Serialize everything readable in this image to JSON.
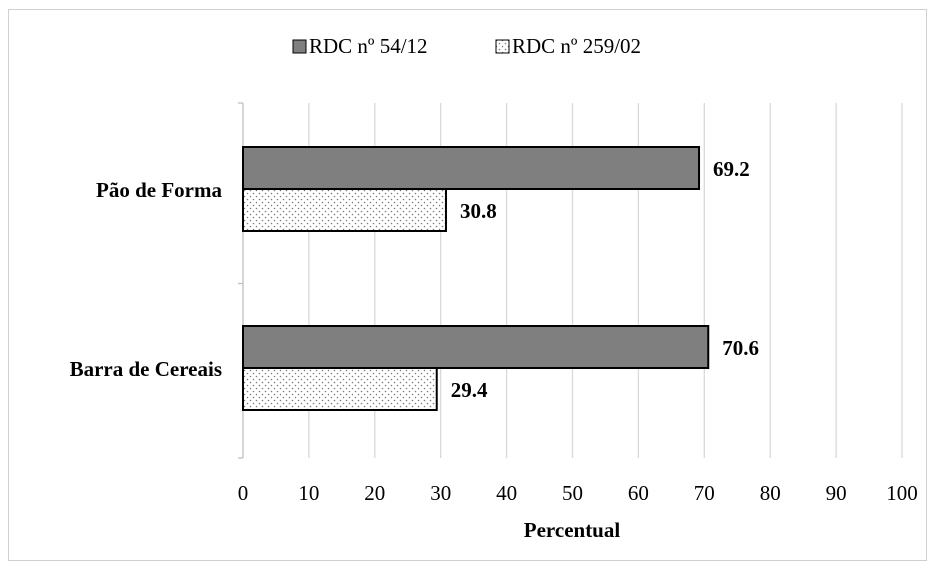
{
  "chart_data": {
    "type": "bar",
    "orientation": "horizontal",
    "categories": [
      "Pão de Forma",
      "Barra de Cereais"
    ],
    "series": [
      {
        "name": "RDC nº 54/12",
        "values": [
          69.2,
          70.6
        ],
        "color": "#7f7f7f",
        "pattern": "solid"
      },
      {
        "name": "RDC nº 259/02",
        "values": [
          30.8,
          29.4
        ],
        "color": "#ffffff",
        "pattern": "dotted"
      }
    ],
    "data_labels": [
      [
        "69.2",
        "70.6"
      ],
      [
        "30.8",
        "29.4"
      ]
    ],
    "xlabel": "Percentual",
    "ylabel": "",
    "title": "",
    "xlim": [
      0,
      100
    ],
    "xticks": [
      "0",
      "10",
      "20",
      "30",
      "40",
      "50",
      "60",
      "70",
      "80",
      "90",
      "100"
    ],
    "grid": "vertical",
    "legend_position": "top-center"
  }
}
